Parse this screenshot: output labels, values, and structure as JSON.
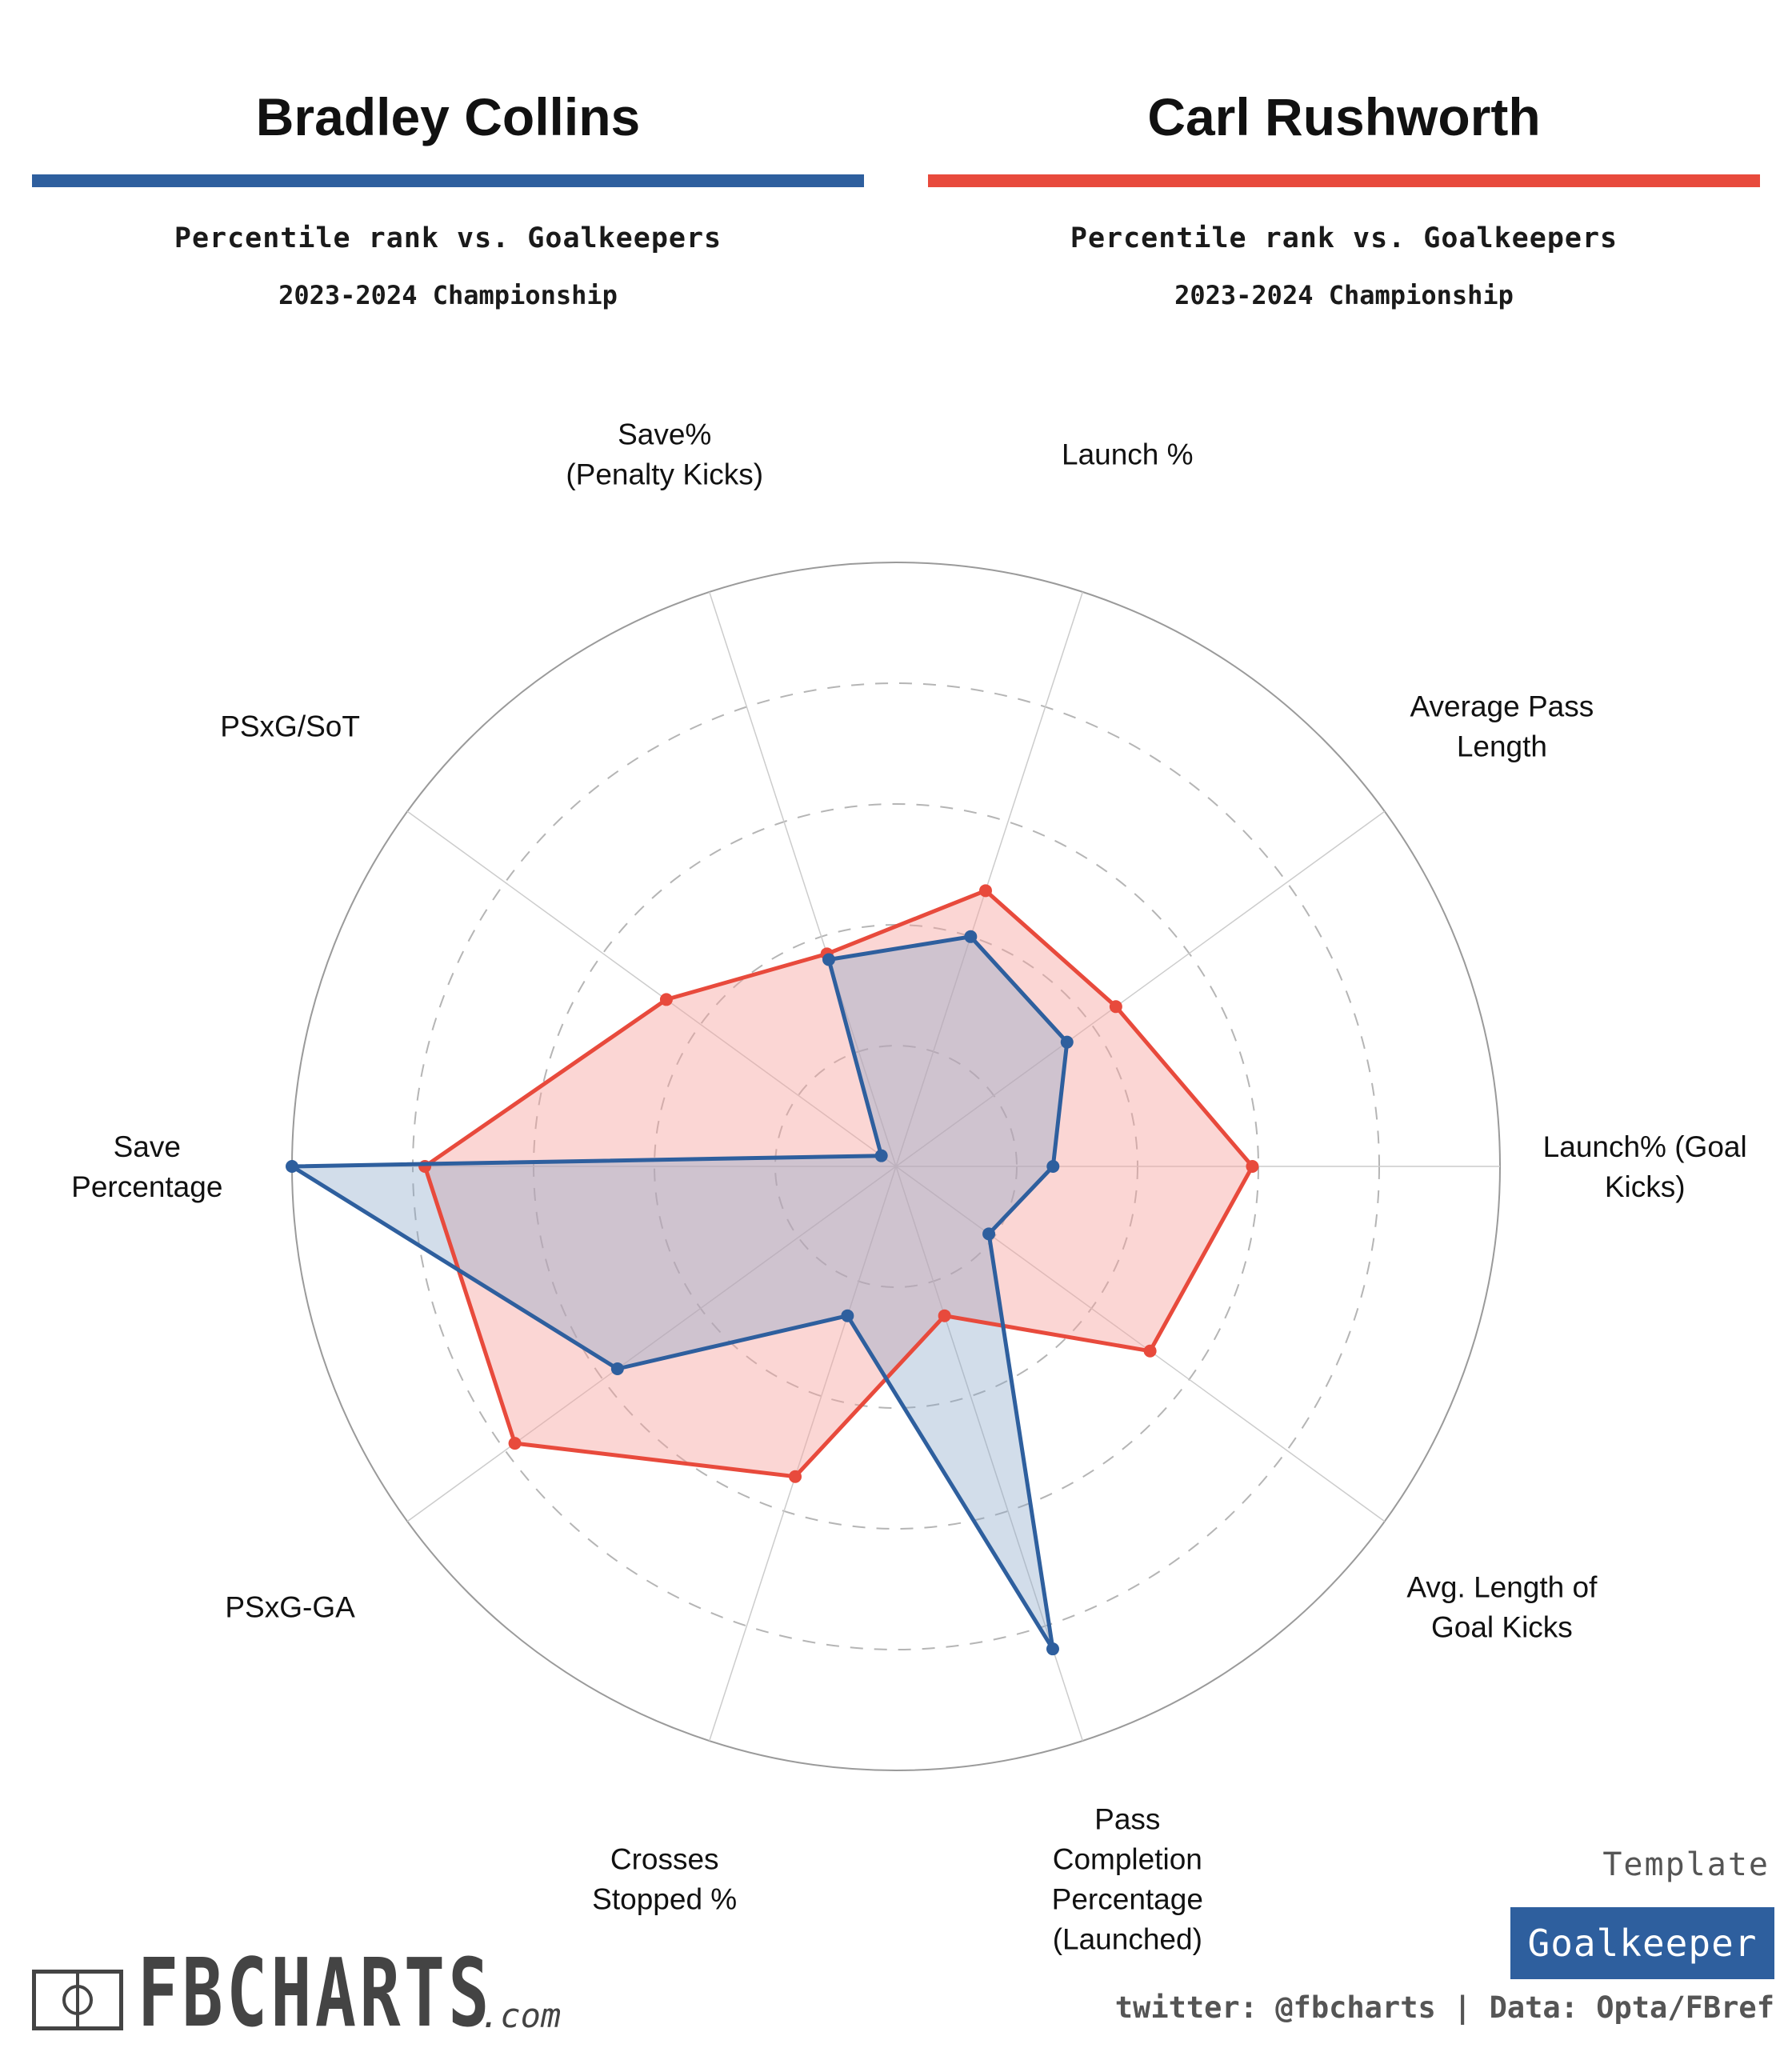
{
  "players": [
    {
      "name": "Bradley Collins",
      "color": "#2e5f9e",
      "fill": "#8aa6c8"
    },
    {
      "name": "Carl Rushworth",
      "color": "#e84a3c",
      "fill": "#f6a3a0"
    }
  ],
  "subtitle": "Percentile rank vs. Goalkeepers",
  "season": "2023-2024 Championship",
  "chart_data": {
    "type": "radar",
    "range": [
      0,
      100
    ],
    "rings": [
      20,
      40,
      60,
      80,
      100
    ],
    "axes": [
      "Launch% (Goal Kicks)",
      "Average Pass Length",
      "Launch %",
      "Save% (Penalty Kicks)",
      "PSxG/SoT",
      "Save Percentage",
      "PSxG-GA",
      "Crosses Stopped %",
      "Pass Completion Percentage (Launched)",
      "Avg. Length of Goal Kicks"
    ],
    "axis_label_lines": [
      [
        "Launch% (Goal",
        "Kicks)"
      ],
      [
        "Average Pass",
        "Length"
      ],
      [
        "Launch %"
      ],
      [
        "Save%",
        "(Penalty Kicks)"
      ],
      [
        "PSxG/SoT"
      ],
      [
        "Save",
        "Percentage"
      ],
      [
        "PSxG-GA"
      ],
      [
        "Crosses",
        "Stopped %"
      ],
      [
        "Pass",
        "Completion",
        "Percentage",
        "(Launched)"
      ],
      [
        "Avg. Length of",
        "Goal Kicks"
      ]
    ],
    "series": [
      {
        "name": "Bradley Collins",
        "values": [
          26,
          35,
          40,
          36,
          3,
          100,
          57,
          26,
          84,
          19
        ]
      },
      {
        "name": "Carl Rushworth",
        "values": [
          59,
          45,
          48,
          37,
          47,
          78,
          78,
          54,
          26,
          52
        ]
      }
    ]
  },
  "template": {
    "label": "Template",
    "value": "Goalkeeper"
  },
  "credits": "twitter: @fbcharts | Data: Opta/FBref",
  "logo": {
    "text": "FBCHARTS",
    "suffix": ".com"
  }
}
